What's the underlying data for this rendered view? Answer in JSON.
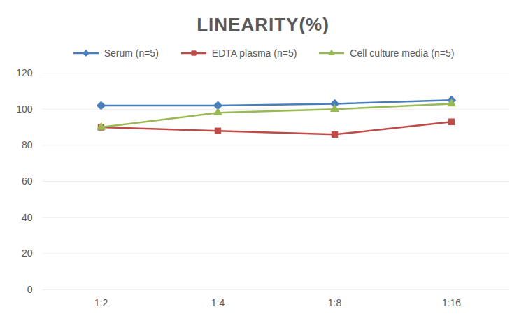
{
  "chart_data": {
    "type": "line",
    "title": "LINEARITY(%)",
    "categories": [
      "1:2",
      "1:4",
      "1:8",
      "1:16"
    ],
    "series": [
      {
        "name": "Serum (n=5)",
        "color": "#4a7ebb",
        "marker": "diamond",
        "values": [
          102,
          102,
          103,
          105
        ]
      },
      {
        "name": "EDTA plasma (n=5)",
        "color": "#be4b48",
        "marker": "square",
        "values": [
          90,
          88,
          86,
          93
        ]
      },
      {
        "name": "Cell culture media (n=5)",
        "color": "#98b954",
        "marker": "triangle",
        "values": [
          90,
          98,
          100,
          103
        ]
      }
    ],
    "ylim": [
      0,
      120
    ],
    "yticks": [
      0,
      20,
      40,
      60,
      80,
      100,
      120
    ],
    "grid": true,
    "legend": "top"
  }
}
